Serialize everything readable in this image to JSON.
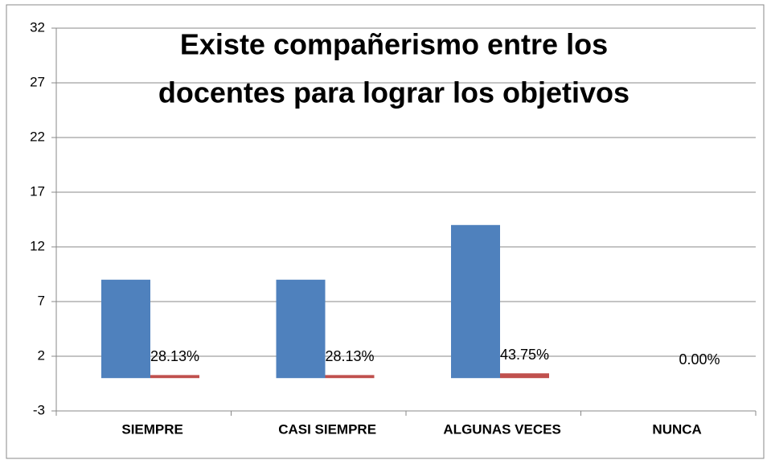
{
  "chart_data": {
    "type": "bar",
    "title": [
      "Existe compañerismo entre los",
      "docentes para  lograr los objetivos"
    ],
    "categories": [
      "SIEMPRE",
      "CASI SIEMPRE",
      "ALGUNAS VECES",
      "NUNCA"
    ],
    "series": [
      {
        "color": "#4f81bd",
        "values": [
          9,
          9,
          14,
          0
        ]
      },
      {
        "color": "#c0504d",
        "values": [
          0.2813,
          0.2813,
          0.4375,
          0
        ],
        "value_labels": [
          "28.13%",
          "28.13%",
          "43.75%",
          "0.00%"
        ]
      }
    ],
    "ylim": [
      -3,
      32
    ],
    "yticks": [
      -3,
      2,
      7,
      12,
      17,
      22,
      27,
      32
    ],
    "grid": true
  }
}
